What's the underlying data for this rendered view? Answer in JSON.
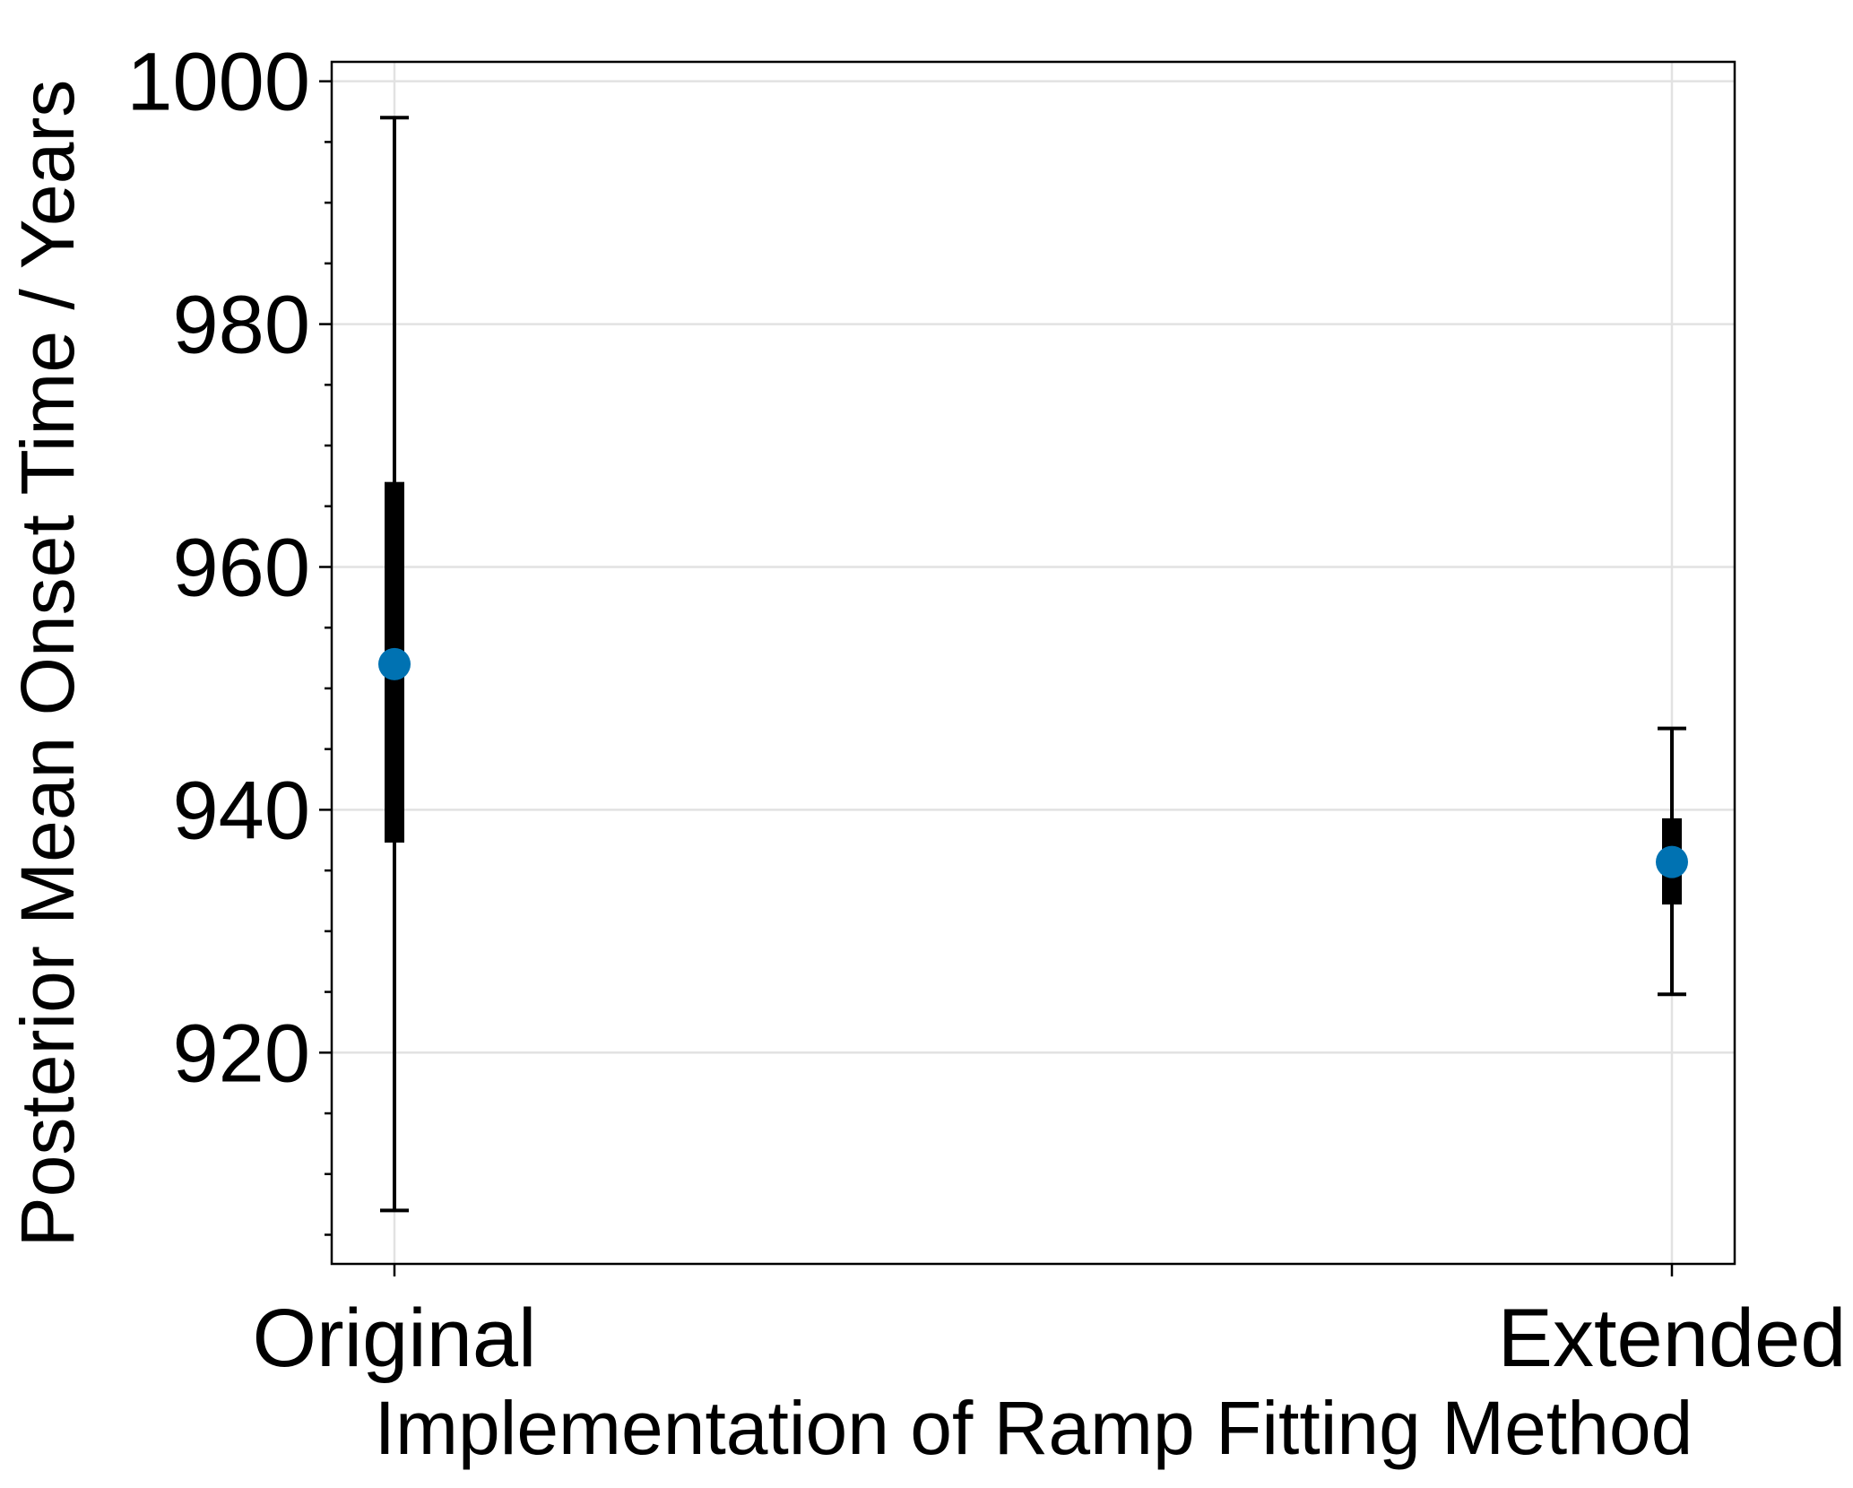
{
  "chart_data": {
    "type": "errorbar",
    "x_label": "Implementation of Ramp Fitting Method",
    "y_label": "Posterior Mean Onset Time / Years",
    "categories": [
      "Original",
      "Extended"
    ],
    "values": [
      952,
      935.7
    ],
    "inner_low": [
      937.3,
      932.2
    ],
    "inner_high": [
      967,
      939.3
    ],
    "outer_low": [
      907,
      924.8
    ],
    "outer_high": [
      997,
      946.7
    ],
    "color": "#0072b2",
    "bar_color": "#000000",
    "ylim": [
      902.6,
      1001.6
    ],
    "yticks": [
      920,
      940,
      960,
      980,
      1000
    ],
    "yminor_ticks": [
      905,
      910,
      915,
      925,
      930,
      935,
      945,
      950,
      955,
      965,
      970,
      975,
      985,
      990,
      995
    ],
    "grid": true
  }
}
